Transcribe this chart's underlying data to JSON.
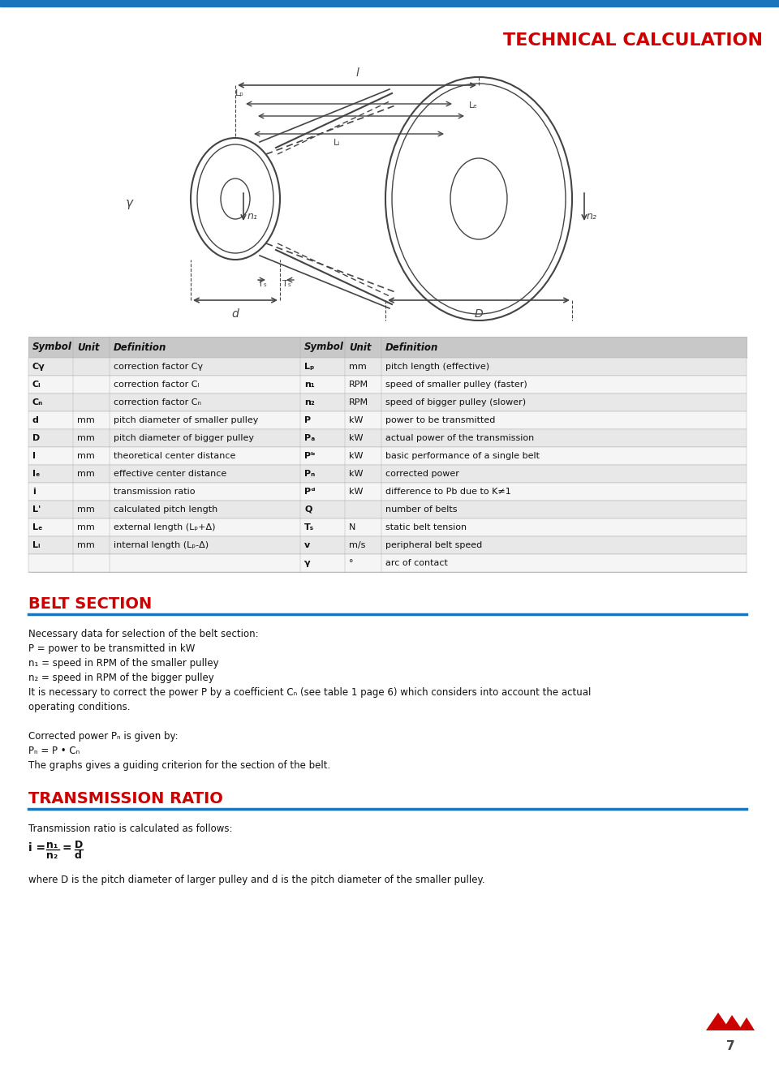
{
  "title": "TECHNICAL CALCULATION",
  "title_color": "#CC0000",
  "header_bar_color": "#1B75BC",
  "page_bg": "#FFFFFF",
  "table_header_bg": "#C8C8C8",
  "table_row_bg_odd": "#E8E8E8",
  "table_row_bg_even": "#F5F5F5",
  "table_border_color": "#AAAAAA",
  "table_headers": [
    "Symbol",
    "Unit",
    "Definition",
    "Symbol",
    "Unit",
    "Definition"
  ],
  "table_rows": [
    [
      "Cγ",
      "",
      "correction factor Cγ",
      "Lₚ",
      "mm",
      "pitch length (effective)"
    ],
    [
      "Cₗ",
      "",
      "correction factor Cₗ",
      "n₁",
      "RPM",
      "speed of smaller pulley (faster)"
    ],
    [
      "Cₙ",
      "",
      "correction factor Cₙ",
      "n₂",
      "RPM",
      "speed of bigger pulley (slower)"
    ],
    [
      "d",
      "mm",
      "pitch diameter of smaller pulley",
      "P",
      "kW",
      "power to be transmitted"
    ],
    [
      "D",
      "mm",
      "pitch diameter of bigger pulley",
      "Pₐ",
      "kW",
      "actual power of the transmission"
    ],
    [
      "I",
      "mm",
      "theoretical center distance",
      "Pᵇ",
      "kW",
      "basic performance of a single belt"
    ],
    [
      "Iₑ",
      "mm",
      "effective center distance",
      "Pₙ",
      "kW",
      "corrected power"
    ],
    [
      "i",
      "",
      "transmission ratio",
      "Pᵈ",
      "kW",
      "difference to Pb due to K≠1"
    ],
    [
      "L'",
      "mm",
      "calculated pitch length",
      "Q",
      "",
      "number of belts"
    ],
    [
      "Lₑ",
      "mm",
      "external length (Lₚ+Δ)",
      "Tₛ",
      "N",
      "static belt tension"
    ],
    [
      "Lᵢ",
      "mm",
      "internal length (Lₚ-Δ)",
      "v",
      "m/s",
      "peripheral belt speed"
    ],
    [
      "",
      "",
      "",
      "γ",
      "°",
      "arc of contact"
    ]
  ],
  "section1_title": "BELT SECTION",
  "section1_text": [
    "Necessary data for selection of the belt section:",
    "P = power to be transmitted in kW",
    "n₁ = speed in RPM of the smaller pulley",
    "n₂ = speed in RPM of the bigger pulley",
    "It is necessary to correct the power P by a coefficient Cₙ (see table 1 page 6) which considers into account the actual\noperating conditions.",
    "",
    "Corrected power Pₙ is given by:",
    "Pₙ = P • Cₙ",
    "The graphs gives a guiding criterion for the section of the belt."
  ],
  "section2_title": "TRANSMISSION RATIO",
  "section2_text": [
    "Transmission ratio is calculated as follows:",
    "i = n₁/n₂ = D/d",
    "where D is the pitch diameter of larger pulley and d is the pitch diameter of the smaller pulley."
  ],
  "page_number": "7"
}
